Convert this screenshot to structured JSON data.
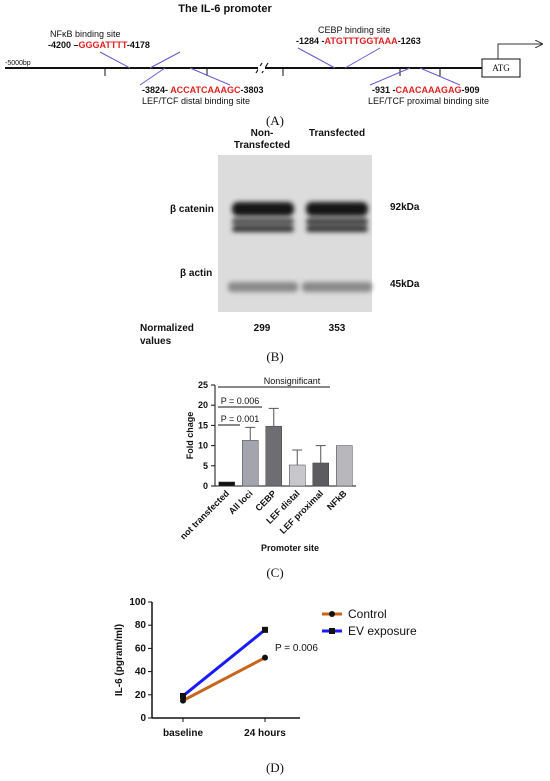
{
  "promoter": {
    "title": "The IL-6 promoter",
    "start_label": "-5000bp",
    "box_label": "ATG",
    "sites": [
      {
        "name": "NFκB binding site",
        "start": "-4200 –",
        "sequence": "GGGATTTT",
        "end": "-4178"
      },
      {
        "name": "LEF/TCF distal binding site",
        "start": "-3824- ",
        "sequence": "ACCATCAAAGC",
        "end": "-3803"
      },
      {
        "name": "CEBP binding site",
        "start": "-1284 -",
        "sequence": "ATGTTTGGTAAA",
        "end": "-1263"
      },
      {
        "name": "LEF/TCF proximal binding site",
        "start": "-931 -",
        "sequence": "CAACAAAGAG",
        "end": "-909"
      }
    ]
  },
  "blot": {
    "columns": [
      "Non-",
      "Transfected",
      "Transfected"
    ],
    "proteins": [
      "β catenin",
      "β actin"
    ],
    "sizes": [
      "92kDa",
      "45kDa"
    ],
    "normalized_label": [
      "Normalized",
      "values"
    ],
    "normalized_values": [
      299,
      353
    ]
  },
  "panel_labels": [
    "(A)",
    "(B)",
    "(C)",
    "(D)"
  ],
  "chart_data": [
    {
      "type": "bar",
      "categories": [
        "not transfected",
        "All loci",
        "CEBP",
        "LEF distal",
        "LEF proximal",
        "NFkB"
      ],
      "values": [
        1,
        11.3,
        14.8,
        5.2,
        5.7,
        10
      ],
      "errors": [
        null,
        3.2,
        4.4,
        3.7,
        4.3,
        null
      ],
      "colors": [
        "#111111",
        "#a4a4ae",
        "#6e6e72",
        "#c8c8cc",
        "#5c5c60",
        "#b8b8bc"
      ],
      "ylim": [
        0,
        25
      ],
      "yticks": [
        0,
        5,
        10,
        15,
        20,
        25
      ],
      "y_label": "Fold chage",
      "x_label": "Promoter site",
      "annotations": [
        "Nonsignificant",
        "P = 0.006",
        "P = 0.001"
      ]
    },
    {
      "type": "line",
      "categories": [
        "baseline",
        "24 hours"
      ],
      "series": [
        {
          "name": "Control",
          "color": "#c8651b",
          "marker": "circle",
          "values": [
            15,
            52
          ]
        },
        {
          "name": "EV exposure",
          "color": "#1a1aff",
          "marker": "square",
          "values": [
            19,
            76
          ]
        }
      ],
      "ylim": [
        0,
        100
      ],
      "yticks": [
        0,
        20,
        40,
        60,
        80,
        100
      ],
      "y_label": "IL-6 (pgram/ml)",
      "annotations": [
        "P = 0.006"
      ]
    }
  ]
}
